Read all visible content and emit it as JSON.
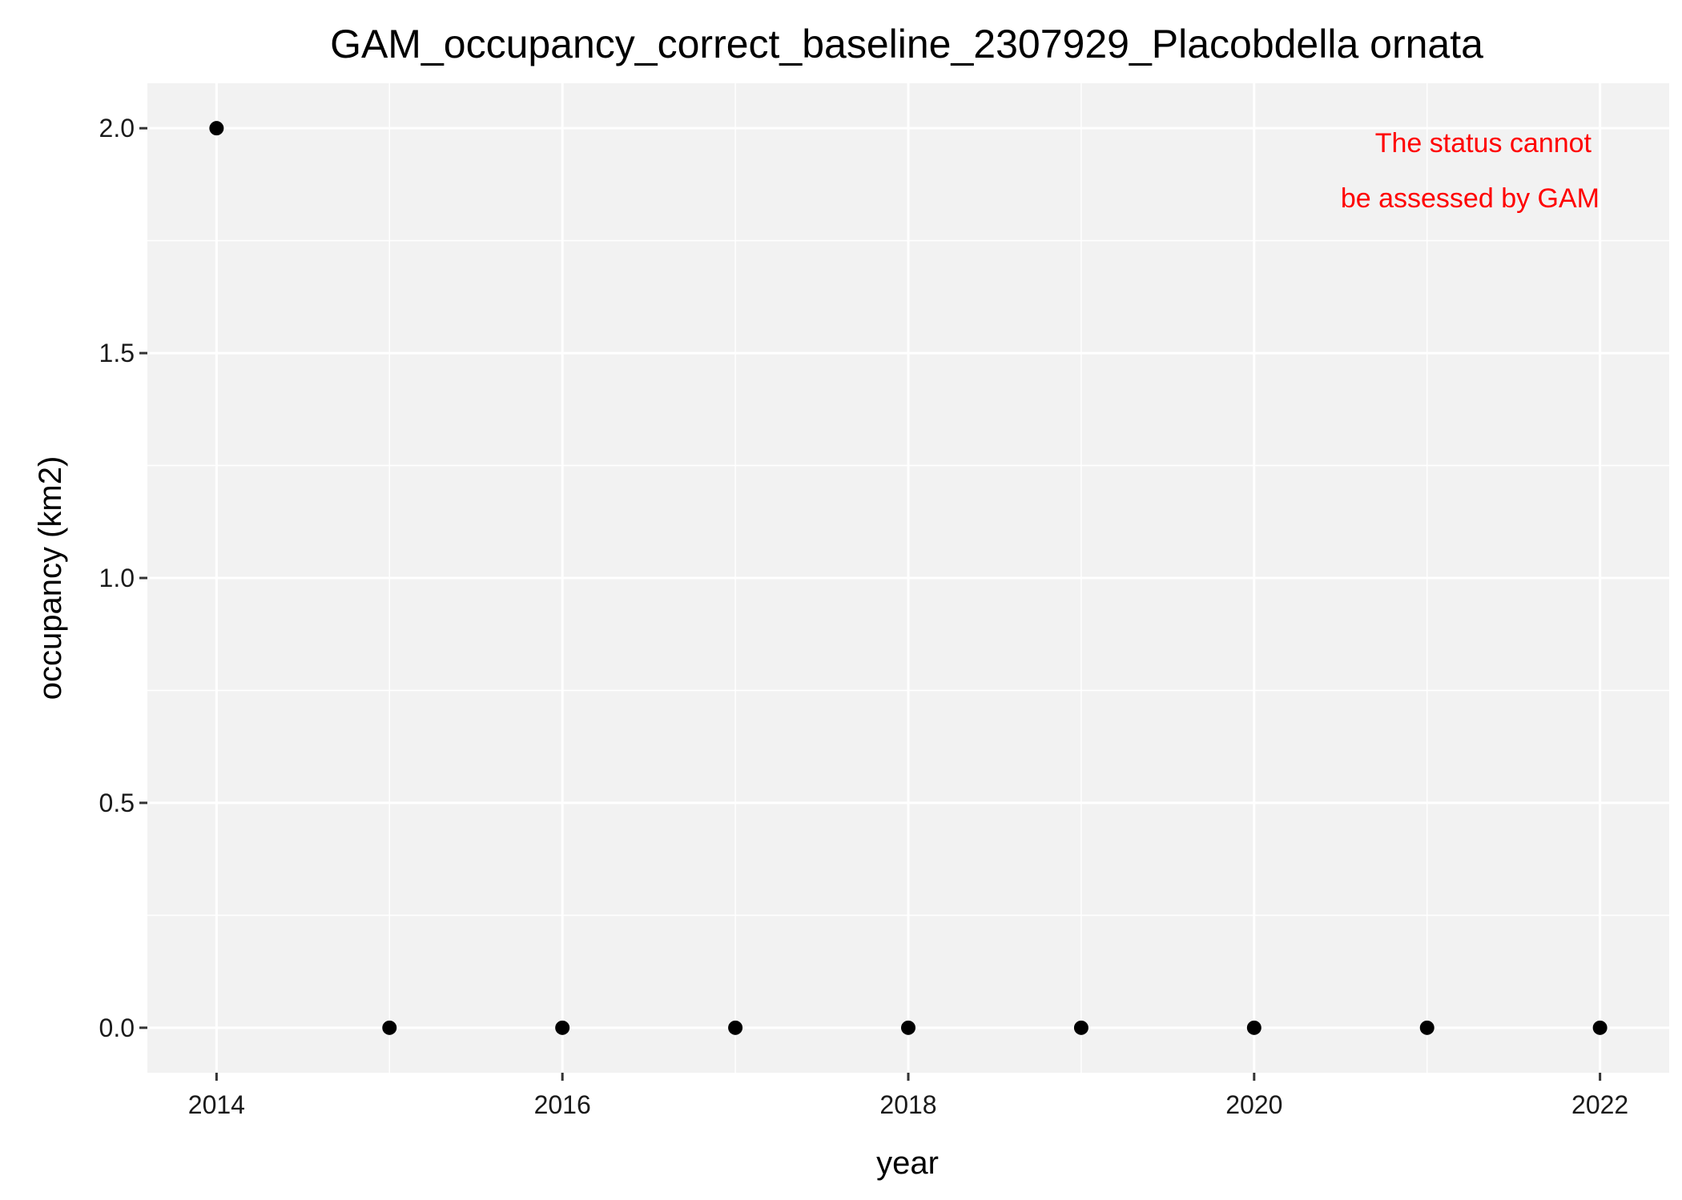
{
  "chart_data": {
    "type": "scatter",
    "title": "GAM_occupancy_correct_baseline_2307929_Placobdella ornata",
    "xlabel": "year",
    "ylabel": "occupancy (km2)",
    "xlim": [
      2013.6,
      2022.4
    ],
    "ylim": [
      -0.1,
      2.1
    ],
    "x_ticks": [
      2014,
      2016,
      2018,
      2020,
      2022
    ],
    "y_ticks": [
      0.0,
      0.5,
      1.0,
      1.5,
      2.0
    ],
    "y_tick_labels": [
      "0.0",
      "0.5",
      "1.0",
      "1.5",
      "2.0"
    ],
    "grid": true,
    "point_color": "#000000",
    "panel_color": "#f2f2f2",
    "points": [
      {
        "x": 2014,
        "y": 2.0
      },
      {
        "x": 2015,
        "y": 0.0
      },
      {
        "x": 2016,
        "y": 0.0
      },
      {
        "x": 2017,
        "y": 0.0
      },
      {
        "x": 2018,
        "y": 0.0
      },
      {
        "x": 2019,
        "y": 0.0
      },
      {
        "x": 2020,
        "y": 0.0
      },
      {
        "x": 2021,
        "y": 0.0
      },
      {
        "x": 2022,
        "y": 0.0
      }
    ],
    "annotation": {
      "lines": [
        "The status cannot",
        "be assessed by GAM"
      ],
      "color": "#ff0000",
      "placement": "top-right"
    }
  }
}
